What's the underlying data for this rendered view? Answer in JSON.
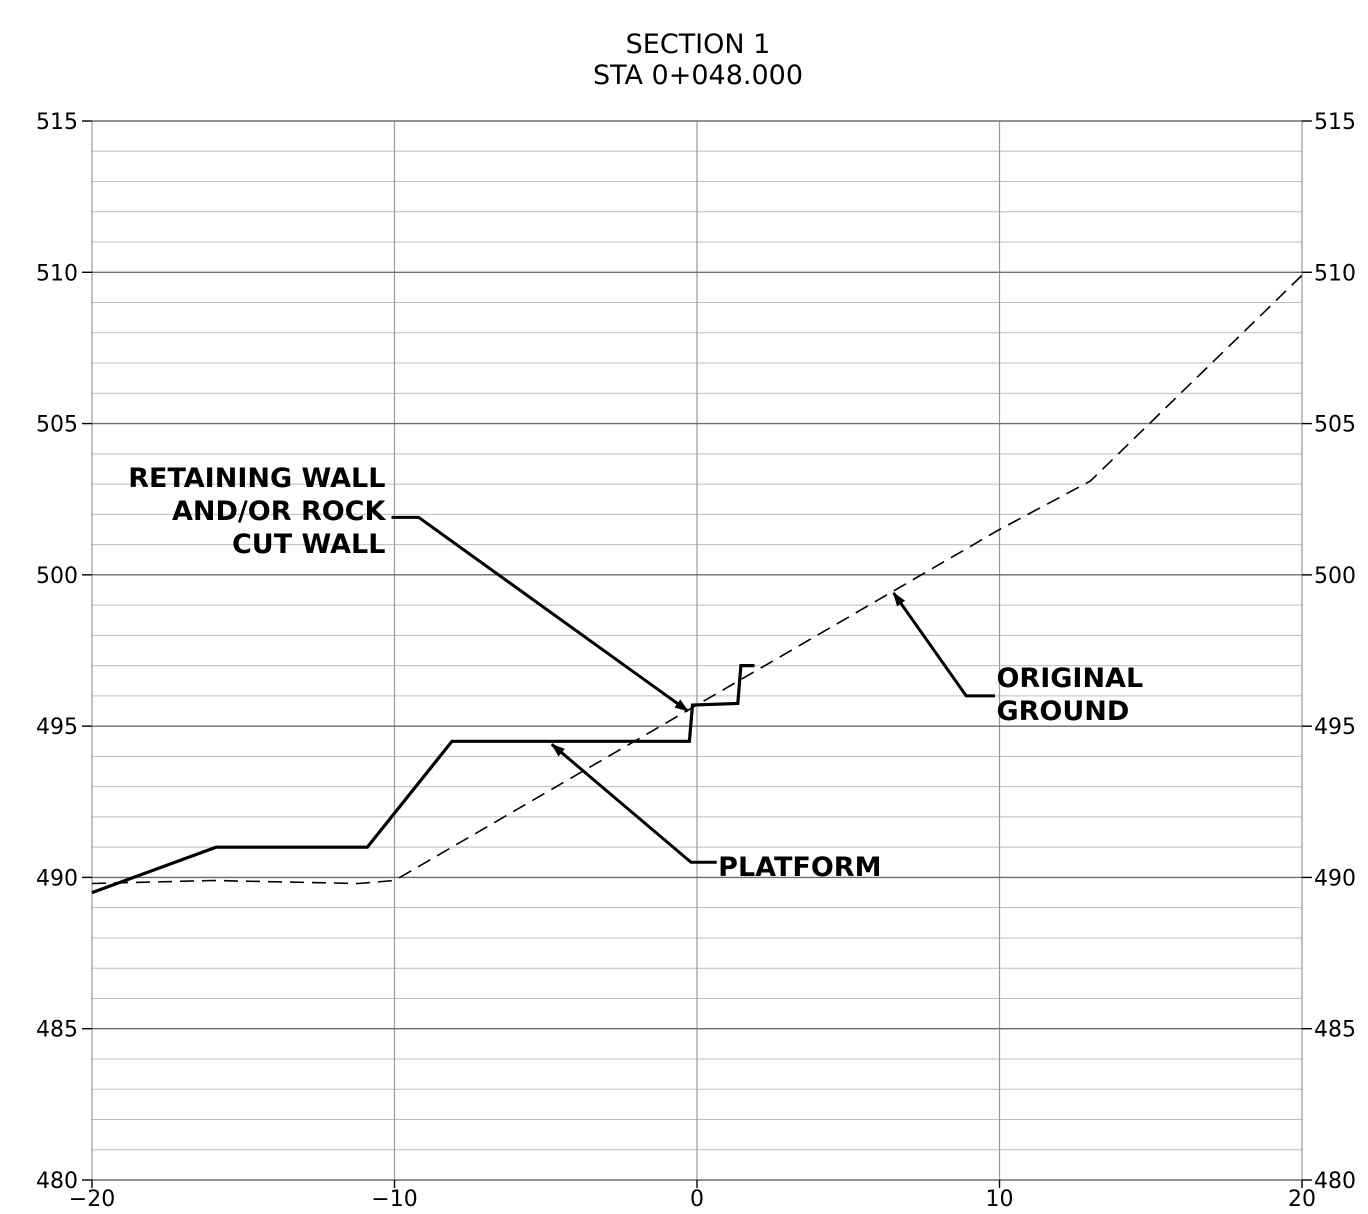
{
  "chart_data": {
    "type": "line",
    "title": "SECTION 1",
    "subtitle": "STA 0+048.000",
    "xlim": [
      -20,
      20
    ],
    "ylim": [
      480,
      515
    ],
    "x_ticks": [
      -20,
      -10,
      0,
      10,
      20
    ],
    "x_tick_labels": [
      "−20",
      "−10",
      "0",
      "10",
      "20"
    ],
    "y_ticks": [
      480,
      485,
      490,
      495,
      500,
      505,
      510,
      515
    ],
    "y_tick_labels": [
      "480",
      "485",
      "490",
      "495",
      "500",
      "505",
      "510",
      "515"
    ],
    "grid": {
      "major_x": 10,
      "major_y": 5,
      "minor_y": 1
    },
    "series": [
      {
        "style": "solid",
        "color": "#000000",
        "points": [
          [
            -20,
            489.5
          ],
          [
            -15.9,
            491.0
          ],
          [
            -10.9,
            491.0
          ],
          [
            -8.1,
            494.5
          ],
          [
            -0.25,
            494.5
          ],
          [
            -0.15,
            495.7
          ],
          [
            1.35,
            495.75
          ],
          [
            1.45,
            497.0
          ],
          [
            1.9,
            497.0
          ]
        ]
      },
      {
        "style": "dashed",
        "color": "#000000",
        "points": [
          [
            -20,
            489.8
          ],
          [
            -16,
            489.9
          ],
          [
            -11.2,
            489.8
          ],
          [
            -10,
            489.9
          ],
          [
            0,
            495.7
          ],
          [
            10,
            501.5
          ],
          [
            13,
            503.1
          ],
          [
            20,
            509.9
          ]
        ]
      }
    ],
    "annotations": [
      {
        "lines": [
          "RETAINING WALL",
          "AND/OR ROCK",
          "CUT WALL"
        ],
        "align": "right",
        "text_anchor": [
          -10.3,
          502.9
        ],
        "leader": [
          [
            -10.1,
            501.9
          ],
          [
            -9.2,
            501.9
          ],
          [
            -0.3,
            495.5
          ]
        ]
      },
      {
        "lines": [
          "PLATFORM"
        ],
        "align": "left",
        "text_anchor": [
          0.7,
          490.05
        ],
        "leader": [
          [
            0.65,
            490.5
          ],
          [
            -0.2,
            490.5
          ],
          [
            -4.8,
            494.4
          ]
        ]
      },
      {
        "lines": [
          "ORIGINAL",
          "GROUND"
        ],
        "align": "left",
        "text_anchor": [
          9.9,
          496.3
        ],
        "leader": [
          [
            9.85,
            496.0
          ],
          [
            8.9,
            496.0
          ],
          [
            6.5,
            499.4
          ]
        ]
      }
    ]
  }
}
